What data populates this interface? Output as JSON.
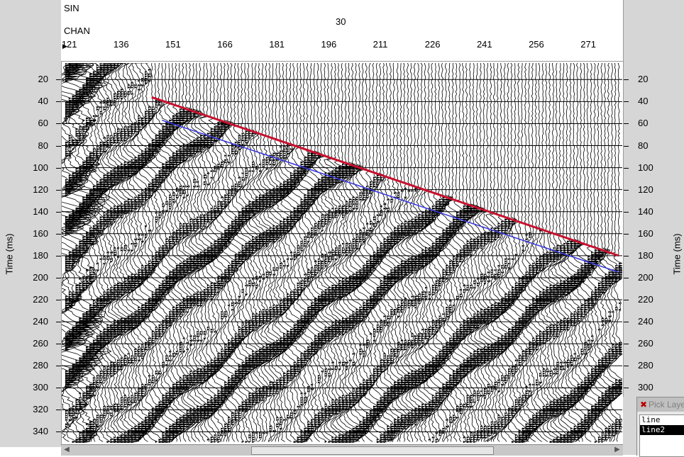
{
  "header": {
    "row1_label": "SIN",
    "row1_value": "30",
    "row2_label": "CHAN",
    "channel_ticks": [
      "121",
      "136",
      "151",
      "166",
      "181",
      "196",
      "211",
      "226",
      "241",
      "256",
      "271"
    ]
  },
  "axes": {
    "left_title": "Time (ms)",
    "right_title": "Time (ms)",
    "time_ticks": [
      "20",
      "40",
      "60",
      "80",
      "100",
      "120",
      "140",
      "160",
      "180",
      "200",
      "220",
      "240",
      "260",
      "280",
      "300",
      "320",
      "340"
    ],
    "time_range_ms": [
      5,
      350
    ],
    "channel_range": [
      119,
      281
    ]
  },
  "picks": {
    "line_color": "#c8102e",
    "line2_color": "#3a3ae0",
    "line": {
      "channels": [
        145,
        280
      ],
      "times_ms": [
        36,
        180
      ]
    },
    "line2": {
      "channels": [
        148,
        280
      ],
      "times_ms": [
        57,
        195
      ]
    }
  },
  "pick_layers": {
    "title": "Pick Layers",
    "items": [
      "line",
      "line2"
    ],
    "selected": "line2"
  },
  "scrollbar": {
    "left_arrow": "◀",
    "right_arrow": "▶"
  }
}
